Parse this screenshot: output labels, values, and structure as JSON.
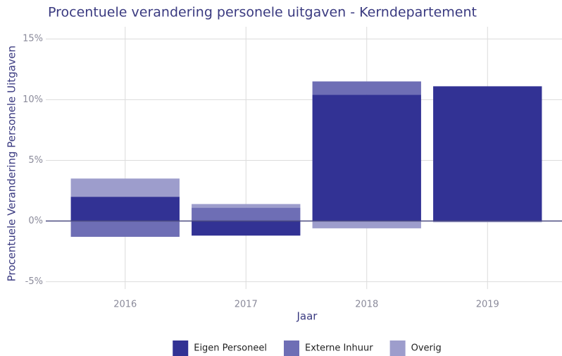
{
  "chart_data": {
    "type": "bar",
    "stacked": true,
    "title": "Procentuele verandering personele uitgaven - Kerndepartement",
    "x_label": "Jaar",
    "y_label": "Procentuele Verandering Personele Uitgaven",
    "categories": [
      "2016",
      "2017",
      "2018",
      "2019"
    ],
    "series": [
      {
        "name": "Eigen Personeel",
        "color": "#323294",
        "values": [
          2.0,
          -1.2,
          10.4,
          11.1
        ]
      },
      {
        "name": "Externe Inhuur",
        "color": "#6e6eb5",
        "values": [
          -1.3,
          1.1,
          1.1,
          0
        ]
      },
      {
        "name": "Overig",
        "color": "#9d9dcc",
        "values": [
          1.5,
          0.3,
          -0.6,
          -0.1
        ]
      }
    ],
    "ylim": [
      -5.6,
      16
    ],
    "yticks": [
      {
        "value": -5,
        "label": "-5%"
      },
      {
        "value": 0,
        "label": "0%"
      },
      {
        "value": 5,
        "label": "5%"
      },
      {
        "value": 10,
        "label": "10%"
      },
      {
        "value": 15,
        "label": "15%"
      }
    ],
    "grid": true,
    "legend": "bottom"
  }
}
